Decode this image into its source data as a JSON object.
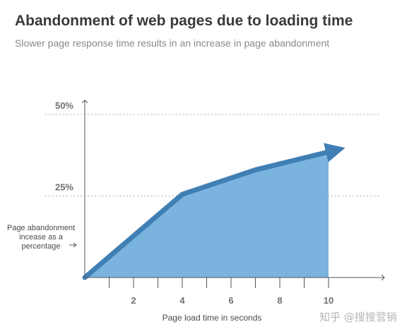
{
  "title": "Abandonment of web pages due to loading time",
  "subtitle": "Slower page response time results in an increase in page abandonment",
  "watermark": "知乎 @搜搜营销",
  "colors": {
    "area_fill": "#7ab4de",
    "line": "#3f7fb4",
    "axis": "#555555",
    "ref_line": "#b0b0b0"
  },
  "chart_data": {
    "type": "area",
    "title": "Abandonment of web pages due to loading time",
    "subtitle": "Slower page response time results in an increase in page abandonment",
    "xlabel": "Page load time in seconds",
    "ylabel": "Page abandonment incease as a percentage",
    "xlim": [
      0,
      12
    ],
    "ylim": [
      0,
      53
    ],
    "x_ticks": [
      1,
      2,
      3,
      4,
      5,
      6,
      7,
      8,
      9,
      10
    ],
    "x_tick_labels": [
      "",
      "2",
      "",
      "4",
      "",
      "6",
      "",
      "8",
      "",
      "10"
    ],
    "reference_lines": [
      {
        "value": 50,
        "label": "50%"
      },
      {
        "value": 25,
        "label": "25%"
      }
    ],
    "series": [
      {
        "x": [
          0,
          4,
          7,
          10
        ],
        "y": [
          0,
          25.5,
          33,
          38.5
        ],
        "end_arrow": true
      }
    ],
    "grid": false
  }
}
